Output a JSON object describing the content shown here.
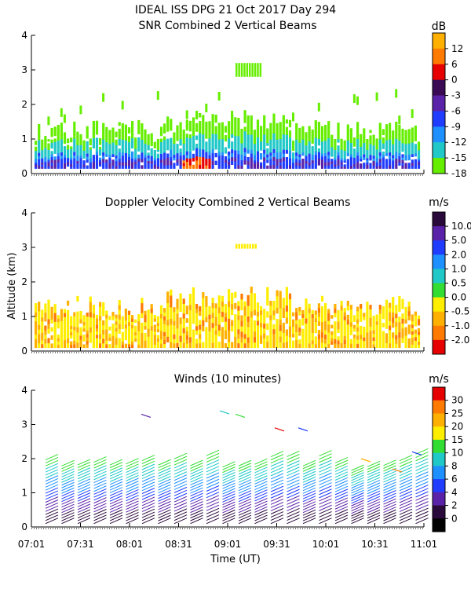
{
  "figure": {
    "title_line1": "IDEAL ISS DPG  21 Oct 2017 Day 294",
    "xlabel": "Time (UT)",
    "ylabel": "Altitude (km)",
    "x_ticks": [
      "07:01",
      "07:31",
      "08:01",
      "08:31",
      "09:01",
      "09:31",
      "10:01",
      "10:31",
      "11:01"
    ]
  },
  "chart_data": [
    {
      "type": "heatmap",
      "title": "SNR Combined 2 Vertical Beams",
      "xlabel": "Time (UT)",
      "ylabel": "Altitude (km)",
      "xlim": [
        "07:01",
        "11:01"
      ],
      "ylim": [
        0,
        4
      ],
      "y_ticks": [
        "0",
        "1",
        "2",
        "3",
        "4"
      ],
      "colorbar": {
        "unit": "dB",
        "labels": [
          "12",
          "6",
          "0",
          "-3",
          "-6",
          "-9",
          "-12",
          "-15",
          "-18"
        ],
        "colors": [
          "#ffb000",
          "#ff7a00",
          "#e60000",
          "#3a0a55",
          "#5a22a8",
          "#1f3cff",
          "#1e90ff",
          "#20c8c8",
          "#66ee00"
        ]
      },
      "summary": "Echoes concentrated 0.2-1.4 km, strongest (near 0 to 12 dB) near the ground around 08:31; isolated weak echoes up to about 3.3 km near 09:01."
    },
    {
      "type": "heatmap",
      "title": "Doppler Velocity Combined 2 Vertical Beams",
      "xlabel": "Time (UT)",
      "ylabel": "Altitude (km)",
      "xlim": [
        "07:01",
        "11:01"
      ],
      "ylim": [
        0,
        4
      ],
      "y_ticks": [
        "0",
        "1",
        "2",
        "3",
        "4"
      ],
      "colorbar": {
        "unit": "m/s",
        "labels": [
          "10.0",
          "5.0",
          "2.0",
          "1.0",
          "0.5",
          "0.0",
          "-0.5",
          "-1.0",
          "-2.0"
        ],
        "colors": [
          "#2a0a3a",
          "#5a22a8",
          "#1f3cff",
          "#1e90ff",
          "#20c8c8",
          "#33dd33",
          "#ffee00",
          "#ffb000",
          "#ff7a00",
          "#e60000"
        ]
      },
      "summary": "Mostly weak downward velocities (0.0 to -1.0 m/s) from 0.1 to about 1.5 km, reaching 1.9 km near 08:31."
    },
    {
      "type": "scatter",
      "title": "Winds (10 minutes)",
      "xlabel": "Time (UT)",
      "ylabel": "Altitude (km)",
      "xlim": [
        "07:01",
        "11:01"
      ],
      "ylim": [
        0,
        4
      ],
      "y_ticks": [
        "0",
        "1",
        "2",
        "3",
        "4"
      ],
      "colorbar": {
        "unit": "m/s",
        "labels": [
          "30",
          "25",
          "20",
          "15",
          "10",
          "8",
          "6",
          "4",
          "2",
          "0"
        ],
        "colors": [
          "#e60000",
          "#ff7a00",
          "#ffb000",
          "#ffee00",
          "#33dd33",
          "#20c8c8",
          "#1e90ff",
          "#1f3cff",
          "#5a22a8",
          "#2a0a3a",
          "#000000"
        ]
      },
      "summary": "Wind barb profiles every 10 minutes; speeds mostly 2-15 m/s, up to 20-25 m/s near 2 km after 09:31."
    }
  ]
}
